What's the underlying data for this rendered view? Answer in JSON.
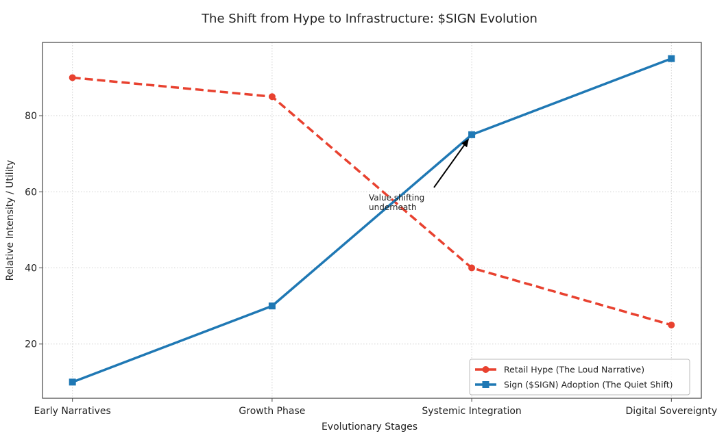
{
  "chart_data": {
    "type": "line",
    "title": "The Shift from Hype to Infrastructure: $SIGN Evolution",
    "xlabel": "Evolutionary Stages",
    "ylabel": "Relative Intensity / Utility",
    "categories": [
      "Early Narratives",
      "Growth Phase",
      "Systemic Integration",
      "Digital Sovereignty"
    ],
    "ylim": [
      5.75,
      99.25
    ],
    "yticks": [
      20,
      40,
      60,
      80
    ],
    "grid": true,
    "series": [
      {
        "name": "Retail Hype (The Loud Narrative)",
        "values": [
          90,
          85,
          40,
          25
        ],
        "color": "#e8412f",
        "style": "dashed",
        "marker": "circle"
      },
      {
        "name": "Sign ($SIGN) Adoption (The Quiet Shift)",
        "values": [
          10,
          30,
          75,
          95
        ],
        "color": "#1f78b4",
        "style": "solid",
        "marker": "square"
      }
    ],
    "annotations": [
      {
        "text_lines": [
          "Value shifting",
          "underneath"
        ],
        "target": {
          "category": "Systemic Integration",
          "value": 75
        },
        "arrow": true
      }
    ],
    "legend": "bottom-right"
  }
}
